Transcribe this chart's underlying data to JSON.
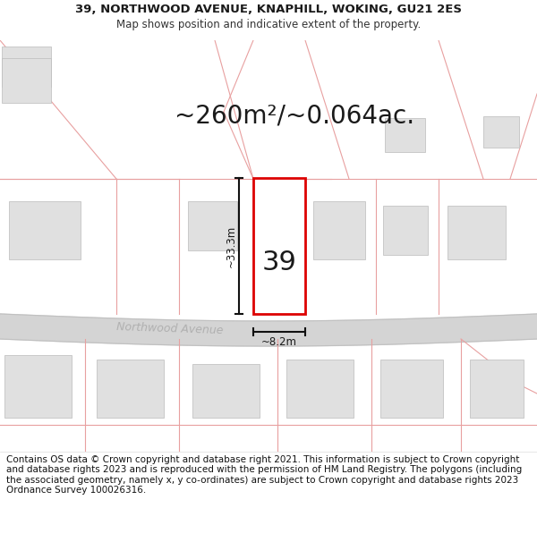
{
  "title_line1": "39, NORTHWOOD AVENUE, KNAPHILL, WOKING, GU21 2ES",
  "title_line2": "Map shows position and indicative extent of the property.",
  "area_text": "~260m²/~0.064ac.",
  "label_number": "39",
  "label_width": "~8.2m",
  "label_height": "~33.3m",
  "road_label": "Northwood Avenue",
  "footer_text": "Contains OS data © Crown copyright and database right 2021. This information is subject to Crown copyright and database rights 2023 and is reproduced with the permission of HM Land Registry. The polygons (including the associated geometry, namely x, y co-ordinates) are subject to Crown copyright and database rights 2023 Ordnance Survey 100026316.",
  "bg_color": "#ffffff",
  "plot_outline_color": "#dd0000",
  "neighbor_line_color": "#e8a0a0",
  "building_fill": "#e0e0e0",
  "building_edge": "#bbbbbb",
  "road_fill": "#d4d4d4",
  "road_edge": "#c0c0c0",
  "dim_line_color": "#111111",
  "road_label_color": "#b0b0b0",
  "title_fontsize": 9.5,
  "subtitle_fontsize": 8.5,
  "area_fontsize": 20,
  "number_fontsize": 22,
  "dim_fontsize": 8.5,
  "footer_fontsize": 7.5
}
